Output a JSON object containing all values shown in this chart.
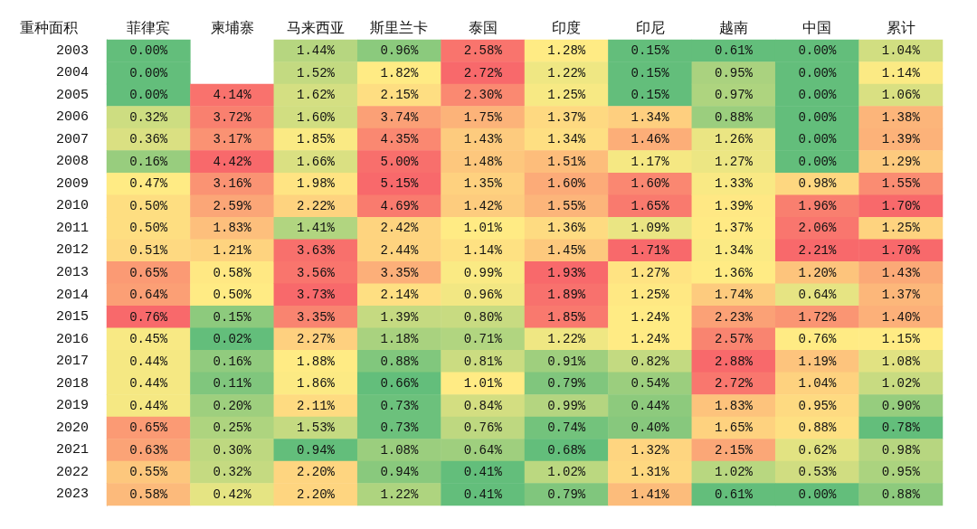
{
  "chart_data": {
    "type": "heatmap",
    "ylabel": "重种面积",
    "categories": [
      "菲律宾",
      "柬埔寨",
      "马来西亚",
      "斯里兰卡",
      "泰国",
      "印度",
      "印尼",
      "越南",
      "中国",
      "累计"
    ],
    "y_categories": [
      "2003",
      "2004",
      "2005",
      "2006",
      "2007",
      "2008",
      "2009",
      "2010",
      "2011",
      "2012",
      "2013",
      "2014",
      "2015",
      "2016",
      "2017",
      "2018",
      "2019",
      "2020",
      "2021",
      "2022",
      "2023"
    ],
    "cells": [
      [
        0.0,
        null,
        1.44,
        0.96,
        2.58,
        1.28,
        0.15,
        0.61,
        0.0,
        1.04
      ],
      [
        0.0,
        null,
        1.52,
        1.82,
        2.72,
        1.22,
        0.15,
        0.95,
        0.0,
        1.14
      ],
      [
        0.0,
        4.14,
        1.62,
        2.15,
        2.3,
        1.25,
        0.15,
        0.97,
        0.0,
        1.06
      ],
      [
        0.32,
        3.72,
        1.6,
        3.74,
        1.75,
        1.37,
        1.34,
        0.88,
        0.0,
        1.38
      ],
      [
        0.36,
        3.17,
        1.85,
        4.35,
        1.43,
        1.34,
        1.46,
        1.26,
        0.0,
        1.39
      ],
      [
        0.16,
        4.42,
        1.66,
        5.0,
        1.48,
        1.51,
        1.17,
        1.27,
        0.0,
        1.29
      ],
      [
        0.47,
        3.16,
        1.98,
        5.15,
        1.35,
        1.6,
        1.6,
        1.33,
        0.98,
        1.55
      ],
      [
        0.5,
        2.59,
        2.22,
        4.69,
        1.42,
        1.55,
        1.65,
        1.39,
        1.96,
        1.7
      ],
      [
        0.5,
        1.83,
        1.41,
        2.42,
        1.01,
        1.36,
        1.09,
        1.37,
        2.06,
        1.25
      ],
      [
        0.51,
        1.21,
        3.63,
        2.44,
        1.14,
        1.45,
        1.71,
        1.34,
        2.21,
        1.7
      ],
      [
        0.65,
        0.58,
        3.56,
        3.35,
        0.99,
        1.93,
        1.27,
        1.36,
        1.2,
        1.43
      ],
      [
        0.64,
        0.5,
        3.73,
        2.14,
        0.96,
        1.89,
        1.25,
        1.74,
        0.64,
        1.37
      ],
      [
        0.76,
        0.15,
        3.35,
        1.39,
        0.8,
        1.85,
        1.24,
        2.23,
        1.72,
        1.4
      ],
      [
        0.45,
        0.02,
        2.27,
        1.18,
        0.71,
        1.22,
        1.24,
        2.57,
        0.76,
        1.15
      ],
      [
        0.44,
        0.16,
        1.88,
        0.88,
        0.81,
        0.91,
        0.82,
        2.88,
        1.19,
        1.08
      ],
      [
        0.44,
        0.11,
        1.86,
        0.66,
        1.01,
        0.79,
        0.54,
        2.72,
        1.04,
        1.02
      ],
      [
        0.44,
        0.2,
        2.11,
        0.73,
        0.84,
        0.99,
        0.44,
        1.83,
        0.95,
        0.9
      ],
      [
        0.65,
        0.25,
        1.53,
        0.73,
        0.76,
        0.74,
        0.4,
        1.65,
        0.88,
        0.78
      ],
      [
        0.63,
        0.3,
        0.94,
        1.08,
        0.64,
        0.68,
        1.32,
        2.15,
        0.62,
        0.98
      ],
      [
        0.55,
        0.32,
        2.2,
        0.94,
        0.41,
        1.02,
        1.31,
        1.02,
        0.53,
        0.95
      ],
      [
        0.58,
        0.42,
        2.2,
        1.22,
        0.41,
        0.79,
        1.41,
        0.61,
        0.0,
        0.88
      ]
    ],
    "cell_labels": [
      [
        "0.00%",
        null,
        "1.44%",
        "0.96%",
        "2.58%",
        "1.28%",
        "0.15%",
        "0.61%",
        "0.00%",
        "1.04%"
      ],
      [
        "0.00%",
        null,
        "1.52%",
        "1.82%",
        "2.72%",
        "1.22%",
        "0.15%",
        "0.95%",
        "0.00%",
        "1.14%"
      ],
      [
        "0.00%",
        "4.14%",
        "1.62%",
        "2.15%",
        "2.30%",
        "1.25%",
        "0.15%",
        "0.97%",
        "0.00%",
        "1.06%"
      ],
      [
        "0.32%",
        "3.72%",
        "1.60%",
        "3.74%",
        "1.75%",
        "1.37%",
        "1.34%",
        "0.88%",
        "0.00%",
        "1.38%"
      ],
      [
        "0.36%",
        "3.17%",
        "1.85%",
        "4.35%",
        "1.43%",
        "1.34%",
        "1.46%",
        "1.26%",
        "0.00%",
        "1.39%"
      ],
      [
        "0.16%",
        "4.42%",
        "1.66%",
        "5.00%",
        "1.48%",
        "1.51%",
        "1.17%",
        "1.27%",
        "0.00%",
        "1.29%"
      ],
      [
        "0.47%",
        "3.16%",
        "1.98%",
        "5.15%",
        "1.35%",
        "1.60%",
        "1.60%",
        "1.33%",
        "0.98%",
        "1.55%"
      ],
      [
        "0.50%",
        "2.59%",
        "2.22%",
        "4.69%",
        "1.42%",
        "1.55%",
        "1.65%",
        "1.39%",
        "1.96%",
        "1.70%"
      ],
      [
        "0.50%",
        "1.83%",
        "1.41%",
        "2.42%",
        "1.01%",
        "1.36%",
        "1.09%",
        "1.37%",
        "2.06%",
        "1.25%"
      ],
      [
        "0.51%",
        "1.21%",
        "3.63%",
        "2.44%",
        "1.14%",
        "1.45%",
        "1.71%",
        "1.34%",
        "2.21%",
        "1.70%"
      ],
      [
        "0.65%",
        "0.58%",
        "3.56%",
        "3.35%",
        "0.99%",
        "1.93%",
        "1.27%",
        "1.36%",
        "1.20%",
        "1.43%"
      ],
      [
        "0.64%",
        "0.50%",
        "3.73%",
        "2.14%",
        "0.96%",
        "1.89%",
        "1.25%",
        "1.74%",
        "0.64%",
        "1.37%"
      ],
      [
        "0.76%",
        "0.15%",
        "3.35%",
        "1.39%",
        "0.80%",
        "1.85%",
        "1.24%",
        "2.23%",
        "1.72%",
        "1.40%"
      ],
      [
        "0.45%",
        "0.02%",
        "2.27%",
        "1.18%",
        "0.71%",
        "1.22%",
        "1.24%",
        "2.57%",
        "0.76%",
        "1.15%"
      ],
      [
        "0.44%",
        "0.16%",
        "1.88%",
        "0.88%",
        "0.81%",
        "0.91%",
        "0.82%",
        "2.88%",
        "1.19%",
        "1.08%"
      ],
      [
        "0.44%",
        "0.11%",
        "1.86%",
        "0.66%",
        "1.01%",
        "0.79%",
        "0.54%",
        "2.72%",
        "1.04%",
        "1.02%"
      ],
      [
        "0.44%",
        "0.20%",
        "2.11%",
        "0.73%",
        "0.84%",
        "0.99%",
        "0.44%",
        "1.83%",
        "0.95%",
        "0.90%"
      ],
      [
        "0.65%",
        "0.25%",
        "1.53%",
        "0.73%",
        "0.76%",
        "0.74%",
        "0.40%",
        "1.65%",
        "0.88%",
        "0.78%"
      ],
      [
        "0.63%",
        "0.30%",
        "0.94%",
        "1.08%",
        "0.64%",
        "0.68%",
        "1.32%",
        "2.15%",
        "0.62%",
        "0.98%"
      ],
      [
        "0.55%",
        "0.32%",
        "2.20%",
        "0.94%",
        "0.41%",
        "1.02%",
        "1.31%",
        "1.02%",
        "0.53%",
        "0.95%"
      ],
      [
        "0.58%",
        "0.42%",
        "2.20%",
        "1.22%",
        "0.41%",
        "0.79%",
        "1.41%",
        "0.61%",
        "0.00%",
        "0.88%"
      ]
    ]
  }
}
